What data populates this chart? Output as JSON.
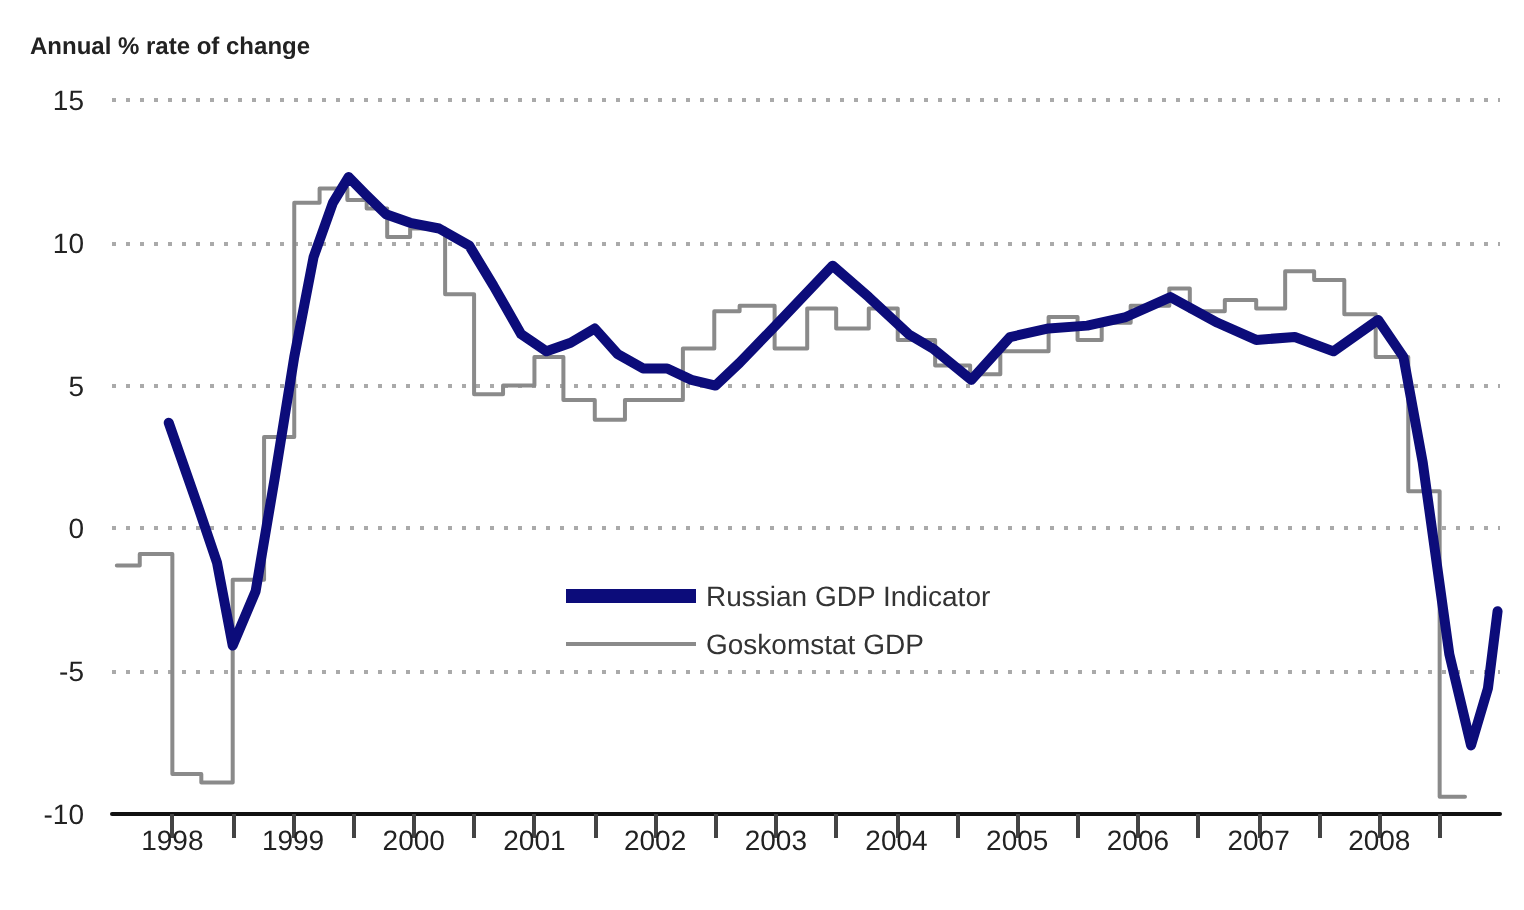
{
  "chart_data": {
    "type": "line",
    "ylabel": "Annual % rate of change",
    "xlim": [
      1998,
      2009.5
    ],
    "xticks": [
      {
        "value": 1998.5,
        "label": "1998"
      },
      {
        "value": 1999,
        "label": null
      },
      {
        "value": 1999.5,
        "label": "1999"
      },
      {
        "value": 2000,
        "label": null
      },
      {
        "value": 2000.5,
        "label": "2000"
      },
      {
        "value": 2001,
        "label": null
      },
      {
        "value": 2001.5,
        "label": "2001"
      },
      {
        "value": 2002,
        "label": null
      },
      {
        "value": 2002.5,
        "label": "2002"
      },
      {
        "value": 2003,
        "label": null
      },
      {
        "value": 2003.5,
        "label": "2003"
      },
      {
        "value": 2004,
        "label": null
      },
      {
        "value": 2004.5,
        "label": "2004"
      },
      {
        "value": 2005,
        "label": null
      },
      {
        "value": 2005.5,
        "label": "2005"
      },
      {
        "value": 2006,
        "label": null
      },
      {
        "value": 2006.5,
        "label": "2006"
      },
      {
        "value": 2007,
        "label": null
      },
      {
        "value": 2007.5,
        "label": "2007"
      },
      {
        "value": 2008,
        "label": null
      },
      {
        "value": 2008.5,
        "label": "2008"
      },
      {
        "value": 2009,
        "label": null
      }
    ],
    "ylim": [
      -10,
      15
    ],
    "yticks": [
      -10,
      -5,
      0,
      5,
      10,
      15
    ],
    "grid": "y",
    "legend": "bottom",
    "line_style": "solid",
    "marker": "none",
    "series": [
      {
        "name": "Russian GDP Indicator",
        "color": "#0c0c7a",
        "type": "line",
        "x": [
          1998.47,
          1998.71,
          1998.87,
          1999.0,
          1999.19,
          1999.35,
          1999.51,
          1999.67,
          1999.83,
          1999.96,
          2000.1,
          2000.27,
          2000.47,
          2000.71,
          2000.96,
          2001.16,
          2001.39,
          2001.6,
          2001.8,
          2002.0,
          2002.19,
          2002.4,
          2002.6,
          2002.8,
          2003.0,
          2003.2,
          2003.52,
          2003.97,
          2004.27,
          2004.6,
          2004.8,
          2005.12,
          2005.44,
          2005.76,
          2006.08,
          2006.4,
          2006.77,
          2007.16,
          2007.48,
          2007.8,
          2008.12,
          2008.49,
          2008.7,
          2008.86,
          2009.08,
          2009.26,
          2009.4,
          2009.48
        ],
        "values": [
          3.7,
          0.8,
          -1.2,
          -4.1,
          -2.2,
          1.8,
          6.0,
          9.5,
          11.4,
          12.3,
          11.7,
          11.0,
          10.7,
          10.5,
          9.9,
          8.5,
          6.8,
          6.2,
          6.5,
          7.0,
          6.1,
          5.6,
          5.6,
          5.2,
          5.0,
          5.8,
          7.2,
          9.2,
          8.1,
          6.8,
          6.3,
          5.2,
          6.7,
          7.0,
          7.1,
          7.4,
          8.1,
          7.2,
          6.6,
          6.7,
          6.2,
          7.3,
          6.0,
          2.3,
          -4.4,
          -7.6,
          -5.6,
          -2.9
        ]
      },
      {
        "name": "Goskomstat GDP",
        "color": "#8a8a8a",
        "type": "step",
        "x": [
          1998.04,
          1998.23,
          1998.5,
          1998.74,
          1999.0,
          1999.26,
          1999.51,
          1999.72,
          1999.95,
          2000.11,
          2000.28,
          2000.47,
          2000.76,
          2001.0,
          2001.24,
          2001.5,
          2001.74,
          2002.0,
          2002.25,
          2002.73,
          2002.99,
          2003.2,
          2003.49,
          2003.76,
          2004.0,
          2004.27,
          2004.51,
          2004.82,
          2005.11,
          2005.36,
          2005.76,
          2006.0,
          2006.2,
          2006.44,
          2006.76,
          2006.93,
          2007.22,
          2007.48,
          2007.72,
          2007.96,
          2008.21,
          2008.47,
          2008.74,
          2009.0,
          2009.21
        ],
        "values": [
          -1.3,
          -0.9,
          -8.6,
          -8.9,
          -1.8,
          3.2,
          11.4,
          11.9,
          11.5,
          11.2,
          10.2,
          10.5,
          8.2,
          4.7,
          5.0,
          6.0,
          4.5,
          3.8,
          4.5,
          6.3,
          7.6,
          7.8,
          6.3,
          7.7,
          7.0,
          7.7,
          6.6,
          5.7,
          5.4,
          6.2,
          7.4,
          6.6,
          7.2,
          7.8,
          8.4,
          7.6,
          8.0,
          7.7,
          9.0,
          8.7,
          7.5,
          6.0,
          1.3,
          -9.4,
          -9.4
        ]
      }
    ]
  }
}
